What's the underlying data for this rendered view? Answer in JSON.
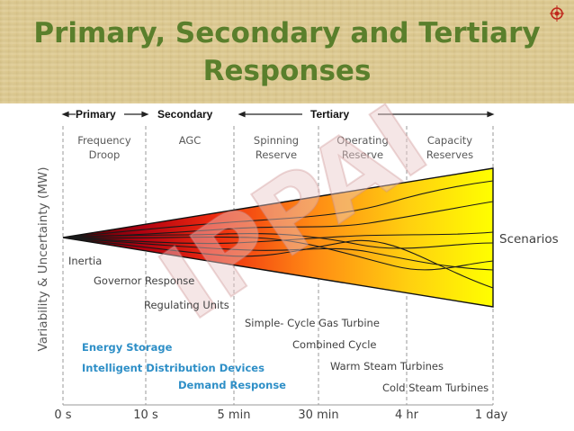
{
  "slide": {
    "title_line1": "Primary, Secondary and Tertiary",
    "title_line2": "Responses",
    "watermark": "IPPAI",
    "logo_icon": "org-emblem-icon"
  },
  "colors": {
    "title": "#5a7f2c",
    "axis_text": "#595959",
    "blue_text": "#2e8fc7",
    "funnel_start": "#1a0000",
    "funnel_mid": "#e53a0c",
    "funnel_end": "#ffee00",
    "watermark": "#e9c8c8"
  },
  "diagram": {
    "bracket_labels": [
      "Primary",
      "Secondary",
      "Tertiary"
    ],
    "column_labels": [
      [
        "Frequency",
        "Droop"
      ],
      [
        "AGC"
      ],
      [
        "Spinning",
        "Reserve"
      ],
      [
        "Operating",
        "Reserve"
      ],
      [
        "Capacity",
        "Reserves"
      ]
    ],
    "y_axis_label": "Variability & Uncertainty (MW)",
    "x_ticks": [
      "0 s",
      "10 s",
      "5 min",
      "30 min",
      "4 hr",
      "1 day"
    ],
    "scenarios_label": "Scenarios",
    "resources": [
      {
        "text": "Inertia",
        "color": "#404040",
        "bold": false
      },
      {
        "text": "Governor Response",
        "color": "#404040",
        "bold": false
      },
      {
        "text": "Regulating Units",
        "color": "#404040",
        "bold": false
      },
      {
        "text": "Simple- Cycle Gas Turbine",
        "color": "#404040",
        "bold": false
      },
      {
        "text": "Combined Cycle",
        "color": "#404040",
        "bold": false
      },
      {
        "text": "Warm Steam Turbines",
        "color": "#404040",
        "bold": false
      },
      {
        "text": "Cold Steam Turbines",
        "color": "#404040",
        "bold": false
      },
      {
        "text": "Energy Storage",
        "color": "#2e8fc7",
        "bold": true
      },
      {
        "text": "Intelligent Distribution Devices",
        "color": "#2e8fc7",
        "bold": true
      },
      {
        "text": "Demand Response",
        "color": "#2e8fc7",
        "bold": true
      }
    ]
  }
}
